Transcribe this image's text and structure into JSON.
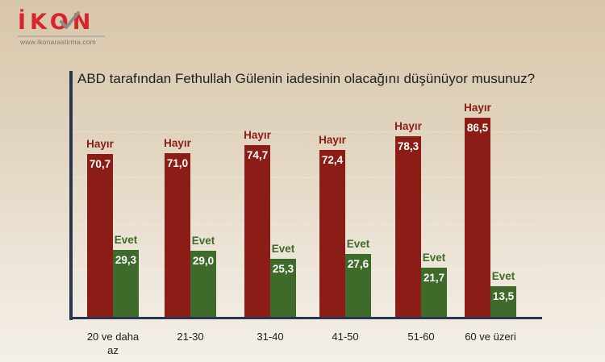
{
  "logo": {
    "text": "İKON",
    "url": "www.ikonarastirma.com",
    "icon": "checkmark-icon"
  },
  "colors": {
    "hayir": "#8b1c16",
    "evet": "#3e6b2a",
    "logo_red": "#d8242b",
    "axis": "#2a3650"
  },
  "chart_data": {
    "type": "bar",
    "title": "ABD tarafından Fethullah Gülenin iadesinin olacağını düşünüyor musunuz?",
    "xlabel": "",
    "ylabel": "",
    "categories": [
      "20 ve daha az",
      "21-30",
      "31-40",
      "41-50",
      "51-60",
      "60 ve üzeri"
    ],
    "series": [
      {
        "name": "Hayır",
        "values": [
          70.7,
          71.0,
          74.7,
          72.4,
          78.3,
          86.5
        ],
        "labels": [
          "70,7",
          "71,0",
          "74,7",
          "72,4",
          "78,3",
          "86,5"
        ]
      },
      {
        "name": "Evet",
        "values": [
          29.3,
          29.0,
          25.3,
          27.6,
          21.7,
          13.5
        ],
        "labels": [
          "29,3",
          "29,0",
          "25,3",
          "27,6",
          "21,7",
          "13,5"
        ]
      }
    ],
    "ylim": [
      0,
      100
    ],
    "grid": true,
    "legend": "inline labels above bars"
  },
  "groups": [
    {
      "category": "20 ve daha az",
      "category_line1": "20 ve daha",
      "category_line2": "az",
      "hayir_label": "Hayır",
      "hayir_value": "70,7",
      "evet_label": "Evet",
      "evet_value": "29,3"
    },
    {
      "category": "21-30",
      "category_line1": "21-30",
      "category_line2": "",
      "hayir_label": "Hayır",
      "hayir_value": "71,0",
      "evet_label": "Evet",
      "evet_value": "29,0"
    },
    {
      "category": "31-40",
      "category_line1": "31-40",
      "category_line2": "",
      "hayir_label": "Hayır",
      "hayir_value": "74,7",
      "evet_label": "Evet",
      "evet_value": "25,3"
    },
    {
      "category": "41-50",
      "category_line1": "41-50",
      "category_line2": "",
      "hayir_label": "Hayır",
      "hayir_value": "72,4",
      "evet_label": "Evet",
      "evet_value": "27,6"
    },
    {
      "category": "51-60",
      "category_line1": "51-60",
      "category_line2": "",
      "hayir_label": "Hayır",
      "hayir_value": "78,3",
      "evet_label": "Evet",
      "evet_value": "21,7"
    },
    {
      "category": "60 ve üzeri",
      "category_line1": "60 ve üzeri",
      "category_line2": "",
      "hayir_label": "Hayır",
      "hayir_value": "86,5",
      "evet_label": "Evet",
      "evet_value": "13,5"
    }
  ]
}
